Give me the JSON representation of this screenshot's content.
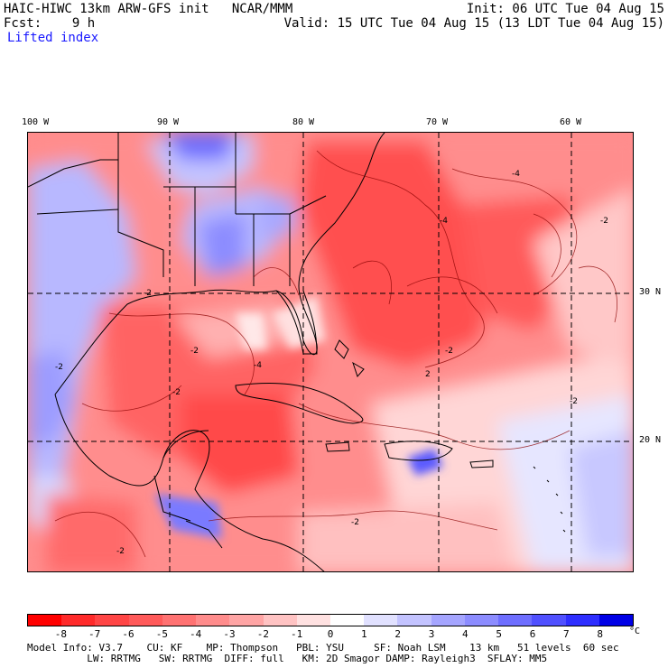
{
  "header": {
    "title": "HAIC-HIWC 13km ARW-GFS init   NCAR/MMM",
    "init": "Init: 06 UTC Tue 04 Aug 15",
    "fcst": "Fcst:    9 h",
    "valid": "Valid: 15 UTC Tue 04 Aug 15 (13 LDT Tue 04 Aug 15)",
    "field": "Lifted index"
  },
  "axes": {
    "lon_labels": [
      "100 W",
      "90 W",
      "80 W",
      "70 W",
      "60 W"
    ],
    "lat_labels": [
      "30 N",
      "20 N"
    ]
  },
  "colorbar": {
    "ticks": [
      "-8",
      "-7",
      "-6",
      "-5",
      "-4",
      "-3",
      "-2",
      "-1",
      "0",
      "1",
      "2",
      "3",
      "4",
      "5",
      "6",
      "7",
      "8"
    ],
    "unit": "°C",
    "colors": [
      "#ff0000",
      "#ff2a2a",
      "#ff4545",
      "#ff5a5a",
      "#ff7272",
      "#ff8c8c",
      "#ffa5a5",
      "#ffc3c3",
      "#ffe1e1",
      "#ffffff",
      "#e1e1ff",
      "#c3c3ff",
      "#a5a5ff",
      "#8c8cff",
      "#6e6eff",
      "#5050ff",
      "#2e2eff",
      "#0000e6"
    ]
  },
  "model_info": {
    "line1": "Model Info: V3.7    CU: KF    MP: Thompson   PBL: YSU     SF: Noah LSM    13 km   51 levels  60 sec",
    "line2": "          LW: RRTMG   SW: RRTMG  DIFF: full   KM: 2D Smagor DAMP: Rayleigh3  SFLAY: MM5"
  },
  "map": {
    "contour_labels": [
      "-2",
      "-2",
      "-4",
      "-2",
      "-2",
      "-2",
      "-2",
      "-2",
      "-4",
      "-2",
      "2",
      "-4",
      "-2"
    ]
  }
}
